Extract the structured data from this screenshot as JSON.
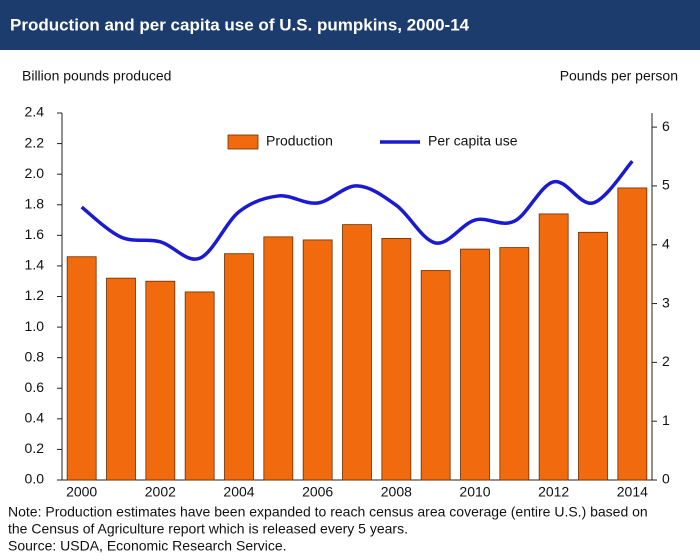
{
  "chart_data": {
    "type": "bar",
    "title": "Production and per capita use of U.S. pumpkins, 2000-14",
    "y_label": "Billion pounds produced",
    "y2_label": "Pounds per person",
    "categories": [
      "2000",
      null,
      "2002",
      null,
      "2004",
      null,
      "2006",
      null,
      "2008",
      null,
      "2010",
      null,
      "2012",
      null,
      "2014"
    ],
    "series": [
      {
        "name": "Production",
        "type": "bar",
        "color": "#f26a0e",
        "values": [
          1.46,
          1.32,
          1.3,
          1.23,
          1.48,
          1.59,
          1.57,
          1.67,
          1.58,
          1.37,
          1.51,
          1.52,
          1.74,
          1.62,
          1.91
        ]
      },
      {
        "name": "Per capita use",
        "type": "line",
        "axis": "y2",
        "color": "#1a1ad0",
        "values": [
          4.64,
          4.13,
          4.05,
          3.77,
          4.56,
          4.83,
          4.71,
          5.0,
          4.67,
          4.03,
          4.42,
          4.4,
          5.07,
          4.71,
          5.42
        ]
      }
    ],
    "ylim": [
      0,
      2.4
    ],
    "yticks": [
      {
        "value": 0,
        "label": "0.0"
      },
      0.2,
      0.4,
      0.6,
      0.8,
      {
        "value": 1,
        "label": "1.0"
      },
      1.2,
      1.4,
      1.6,
      1.8,
      {
        "value": 2,
        "label": "2.0"
      },
      2.2,
      2.4
    ],
    "y2lim": [
      0,
      6.24
    ],
    "y2ticks": [
      0,
      1,
      2,
      3,
      4,
      5,
      6
    ],
    "notes": [
      "Note: Production estimates have been expanded to reach census area coverage (entire U.S.) based on",
      "the Census of Agriculture report which is released every 5 years.",
      "Source: USDA, Economic Research Service."
    ]
  }
}
